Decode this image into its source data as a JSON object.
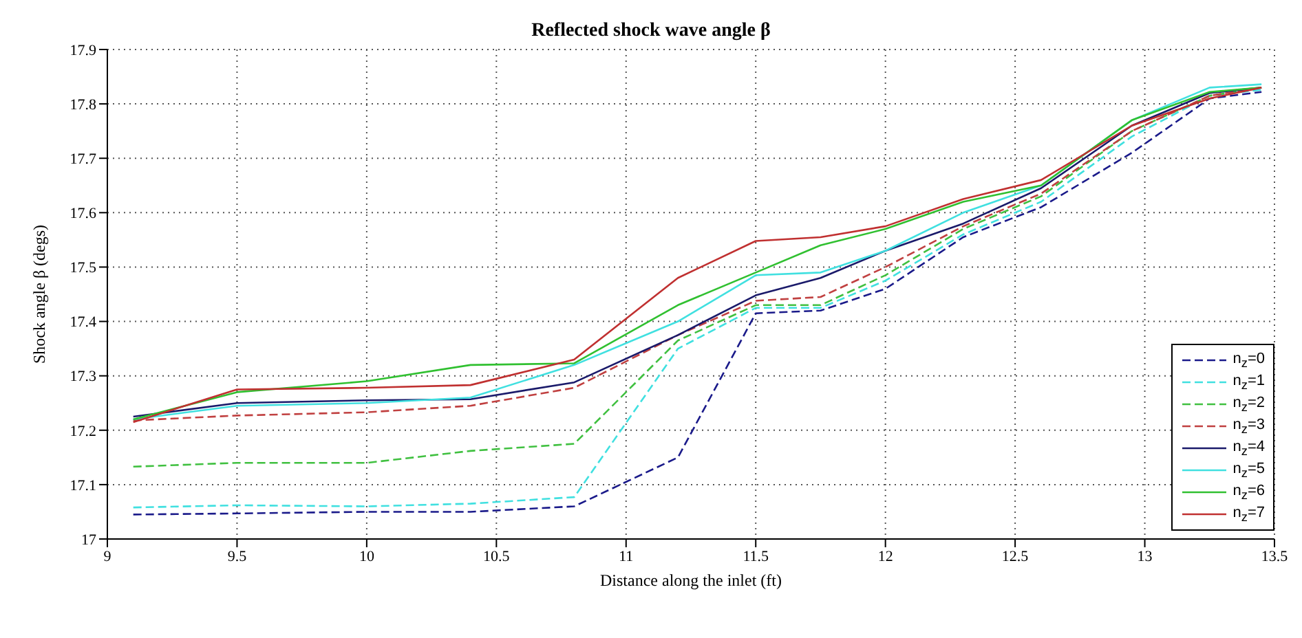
{
  "chart_data": {
    "type": "line",
    "title": "Reflected shock wave angle  β",
    "xlabel": "Distance along the inlet (ft)",
    "ylabel": "Shock angle β (degs)",
    "x": [
      9.1,
      9.5,
      10.0,
      10.4,
      10.8,
      11.2,
      11.5,
      11.75,
      12.0,
      12.3,
      12.6,
      12.95,
      13.25,
      13.45
    ],
    "series": [
      {
        "name": "n$_{z}$=0",
        "color": "#1a1a8a",
        "line_style": "dashed",
        "values": [
          17.045,
          17.047,
          17.05,
          17.05,
          17.06,
          17.15,
          17.415,
          17.42,
          17.46,
          17.555,
          17.61,
          17.71,
          17.81,
          17.822
        ]
      },
      {
        "name": "n$_{z}$=1",
        "color": "#40e0e0",
        "line_style": "dashed",
        "values": [
          17.058,
          17.062,
          17.06,
          17.065,
          17.077,
          17.35,
          17.425,
          17.425,
          17.475,
          17.56,
          17.62,
          17.74,
          17.815,
          17.826
        ]
      },
      {
        "name": "n$_{z}$=2",
        "color": "#40c040",
        "line_style": "dashed",
        "values": [
          17.133,
          17.14,
          17.14,
          17.162,
          17.175,
          17.365,
          17.43,
          17.43,
          17.485,
          17.57,
          17.63,
          17.75,
          17.815,
          17.83
        ]
      },
      {
        "name": "n$_{z}$=3",
        "color": "#c04040",
        "line_style": "dashed",
        "values": [
          17.218,
          17.227,
          17.233,
          17.245,
          17.278,
          17.375,
          17.438,
          17.445,
          17.5,
          17.575,
          17.635,
          17.75,
          17.815,
          17.83
        ]
      },
      {
        "name": "n$_{z}$=4",
        "color": "#1a1a6a",
        "line_style": "solid",
        "values": [
          17.225,
          17.25,
          17.255,
          17.257,
          17.288,
          17.375,
          17.448,
          17.48,
          17.53,
          17.58,
          17.645,
          17.76,
          17.82,
          17.83
        ]
      },
      {
        "name": "n$_{z}$=5",
        "color": "#40e0e0",
        "line_style": "solid",
        "values": [
          17.22,
          17.245,
          17.25,
          17.26,
          17.32,
          17.4,
          17.485,
          17.49,
          17.53,
          17.6,
          17.65,
          17.77,
          17.83,
          17.836
        ]
      },
      {
        "name": "n$_{z}$=6",
        "color": "#30c030",
        "line_style": "solid",
        "values": [
          17.22,
          17.27,
          17.29,
          17.32,
          17.323,
          17.43,
          17.49,
          17.54,
          17.57,
          17.62,
          17.65,
          17.77,
          17.822,
          17.83
        ]
      },
      {
        "name": "n$_{z}$=7",
        "color": "#c03030",
        "line_style": "solid",
        "values": [
          17.215,
          17.275,
          17.278,
          17.283,
          17.33,
          17.48,
          17.548,
          17.555,
          17.575,
          17.625,
          17.66,
          17.76,
          17.81,
          17.83
        ]
      }
    ],
    "xlim": [
      9,
      13.5
    ],
    "xticks": [
      9,
      9.5,
      10,
      10.5,
      11,
      11.5,
      12,
      12.5,
      13,
      13.5
    ],
    "ylim": [
      17,
      17.9
    ],
    "yticks": [
      17,
      17.1,
      17.2,
      17.3,
      17.4,
      17.5,
      17.6,
      17.7,
      17.8,
      17.9
    ],
    "grid": true,
    "legend": "bottom right",
    "marker": "none"
  }
}
